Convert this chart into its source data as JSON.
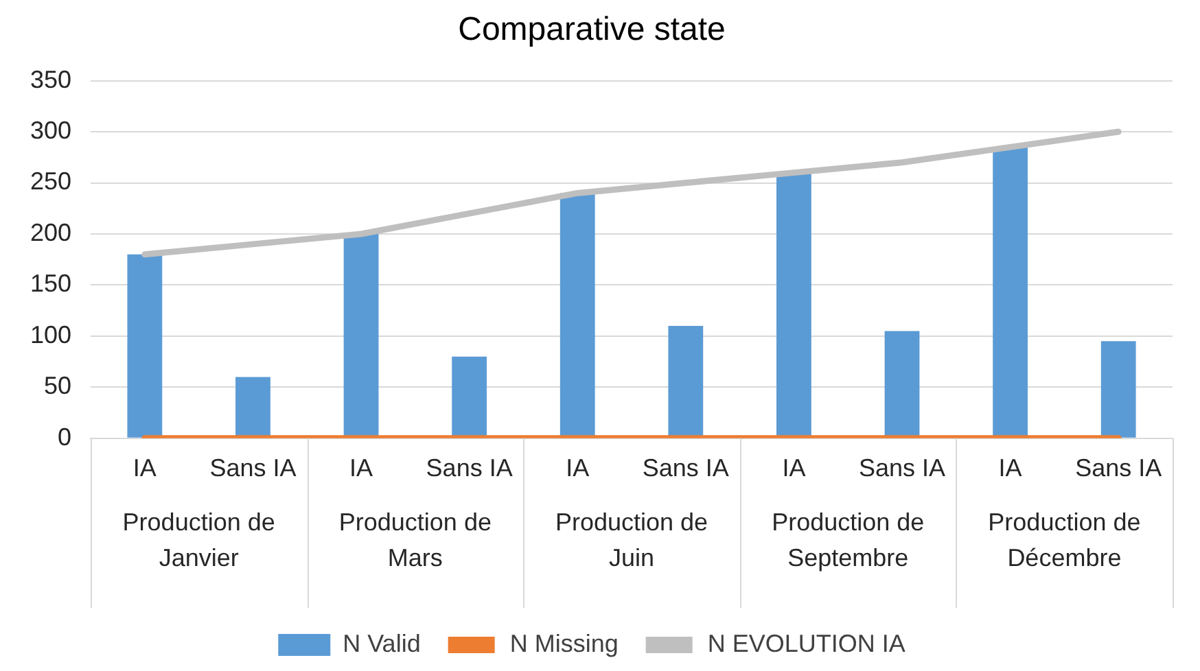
{
  "chart_data": {
    "type": "bar",
    "title": "Comparative state",
    "categories": [
      "IA",
      "Sans IA",
      "IA",
      "Sans IA",
      "IA",
      "Sans IA",
      "IA",
      "Sans IA",
      "IA",
      "Sans IA"
    ],
    "series": [
      {
        "name": "N Valid",
        "color": "#5b9bd5",
        "values": [
          180,
          60,
          200,
          80,
          240,
          110,
          260,
          105,
          285,
          95
        ]
      },
      {
        "name": "N Missing",
        "type": "line",
        "color": "#ed7d31",
        "values": [
          0,
          0,
          0,
          0,
          0,
          0,
          0,
          0,
          0,
          0
        ]
      },
      {
        "name": "N EVOLUTION IA",
        "type": "line",
        "color": "#bfbfbf",
        "values": [
          180,
          190,
          200,
          220,
          240,
          250,
          260,
          270,
          285,
          300
        ]
      }
    ],
    "annotations": [
      "Production de Janvier",
      "Production de Mars",
      "Production de Juin",
      "Production de Septembre",
      "Production de Décembre"
    ],
    "ylim": [
      0,
      350
    ],
    "yticks": [
      0,
      50,
      100,
      150,
      200,
      250,
      300,
      350
    ],
    "grid": "y",
    "legend": "bottom",
    "marker": "none"
  }
}
